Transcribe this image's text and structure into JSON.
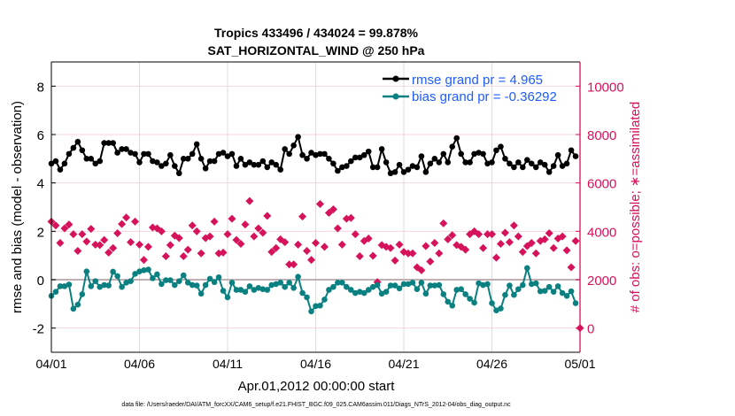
{
  "chart_data": {
    "type": "line",
    "title": [
      "Tropics 433496 / 434024 = 99.878%",
      "SAT_HORIZONTAL_WIND @ 250 hPa"
    ],
    "xlabel": "Apr.01,2012 00:00:00 start",
    "ylabel": "rmse and bias (model - observation)",
    "ylabel_right": "# of obs: o=possible; ∗=assimilated",
    "footer": "data file: /Users/raeder/DAI/ATM_forcXX/CAM6_setup/f.e21.FHIST_BGC.f09_025.CAM6assim.011/Diags_NTrS_2012-04/obs_diag_output.nc",
    "x_start": "2012-04-01 00:00",
    "x_interval_hours": 6,
    "xlim": [
      "2012-04-01",
      "2012-05-01"
    ],
    "xticks": [
      "04/01",
      "04/06",
      "04/11",
      "04/16",
      "04/21",
      "04/26",
      "05/01"
    ],
    "ylim": [
      -3,
      9
    ],
    "yticks": [
      -2,
      0,
      2,
      4,
      6,
      8
    ],
    "ylim_right": [
      -1000,
      11000
    ],
    "yticks_right": [
      0,
      2000,
      4000,
      6000,
      8000,
      10000
    ],
    "grid": true,
    "legend_position": "top-right",
    "colors": {
      "rmse": "#000000",
      "bias": "#0a8080",
      "obs": "#d6125a",
      "legend_text": "#1f5cff",
      "right_axis": "#d6125a"
    },
    "series": [
      {
        "name": "rmse grand pr = 4.965",
        "axis": "left",
        "values": [
          4.8,
          4.9,
          4.55,
          4.8,
          5.2,
          5.45,
          5.7,
          5.35,
          5.0,
          5.0,
          4.8,
          4.9,
          5.65,
          5.65,
          5.65,
          5.25,
          5.4,
          5.4,
          5.25,
          5.2,
          4.85,
          5.2,
          5.2,
          4.9,
          4.85,
          4.7,
          4.8,
          5.15,
          4.7,
          4.4,
          5.0,
          5.0,
          5.2,
          5.6,
          5.0,
          4.6,
          4.9,
          4.9,
          5.2,
          5.25,
          5.1,
          5.2,
          4.7,
          5.0,
          4.75,
          4.85,
          4.75,
          4.75,
          4.9,
          4.65,
          4.85,
          4.75,
          4.55,
          5.4,
          5.2,
          5.55,
          5.9,
          5.15,
          5.0,
          5.25,
          5.15,
          5.2,
          5.2,
          5.0,
          4.8,
          4.5,
          4.65,
          4.7,
          4.9,
          5.05,
          5.05,
          5.15,
          5.3,
          4.65,
          4.65,
          5.4,
          4.85,
          4.4,
          4.45,
          4.75,
          4.45,
          4.55,
          4.7,
          4.65,
          5.1,
          4.45,
          4.8,
          5.0,
          4.85,
          5.2,
          4.85,
          5.5,
          5.85,
          5.2,
          4.85,
          4.85,
          5.2,
          5.25,
          5.2,
          4.8,
          4.85,
          5.35,
          5.5,
          5.0,
          4.8,
          4.65,
          4.85,
          4.65,
          4.95,
          4.8,
          4.65,
          4.85,
          4.75,
          4.45,
          4.7,
          5.15,
          4.7,
          4.8,
          5.35,
          5.1
        ]
      },
      {
        "name": "bias grand pr = -0.36292",
        "axis": "left",
        "values": [
          -0.67,
          -0.5,
          -0.27,
          -0.27,
          -0.2,
          -1.2,
          -1.03,
          -0.6,
          0.34,
          -0.27,
          -0.06,
          -0.3,
          -0.22,
          -0.24,
          0.33,
          0.15,
          -0.3,
          -0.12,
          -0.06,
          0.24,
          0.34,
          0.39,
          0.42,
          0.06,
          0.22,
          -0.18,
          -0.02,
          -0.02,
          -0.22,
          -0.06,
          0.18,
          -0.12,
          -0.22,
          -0.24,
          -0.58,
          -0.22,
          0.04,
          -0.1,
          0.1,
          -0.46,
          -0.73,
          -0.12,
          -0.42,
          -0.42,
          -0.5,
          -0.27,
          -0.42,
          -0.34,
          -0.39,
          -0.42,
          -0.22,
          -0.18,
          -0.12,
          -0.3,
          -0.12,
          -0.34,
          0.12,
          -0.55,
          -0.73,
          -1.31,
          -1.09,
          -1.07,
          -0.82,
          -0.42,
          -0.3,
          -0.12,
          -0.12,
          -0.3,
          -0.42,
          -0.55,
          -0.5,
          -0.55,
          -0.42,
          -0.3,
          -0.22,
          -0.58,
          -0.5,
          -0.24,
          -0.24,
          -0.36,
          -0.18,
          -0.18,
          -0.12,
          -0.39,
          -0.12,
          -0.58,
          -0.24,
          -0.24,
          -0.22,
          -0.6,
          -0.91,
          -1.07,
          -0.42,
          -0.39,
          -0.6,
          -0.79,
          -0.95,
          -0.15,
          -0.22,
          -0.18,
          -0.97,
          -1.27,
          -1.19,
          -0.63,
          -0.24,
          -0.63,
          -0.39,
          -0.22,
          0.48,
          -0.18,
          -0.15,
          -0.48,
          -0.46,
          -0.3,
          -0.5,
          -0.27,
          -0.55,
          -0.67,
          -0.48,
          -0.97
        ]
      },
      {
        "axis": "right",
        "values": [
          4400,
          4240,
          3520,
          4120,
          4280,
          3880,
          3190,
          3880,
          3580,
          4100,
          3450,
          3430,
          3640,
          3120,
          3310,
          3920,
          4300,
          4570,
          3550,
          4400,
          3450,
          2820,
          3360,
          4160,
          4120,
          4000,
          2970,
          3430,
          3820,
          3720,
          2970,
          3240,
          4240,
          4000,
          3090,
          3720,
          3790,
          4400,
          3090,
          3120,
          3880,
          4520,
          3640,
          3480,
          4280,
          5250,
          3790,
          4120,
          3940,
          4640,
          3150,
          3310,
          3670,
          3550,
          2630,
          2630,
          3450,
          4610,
          3190,
          2820,
          3520,
          5130,
          3360,
          4760,
          4910,
          4120,
          3450,
          4520,
          4550,
          3880,
          2970,
          3600,
          3700,
          2990,
          1900,
          3430,
          3360,
          3310,
          2790,
          3450,
          3150,
          3090,
          3090,
          2510,
          2390,
          3390,
          2750,
          3520,
          3090,
          4330,
          3670,
          3840,
          3430,
          3360,
          3240,
          3880,
          4000,
          3880,
          3310,
          3880,
          3880,
          2910,
          3480,
          3940,
          3550,
          4240,
          3790,
          3150,
          3390,
          3520,
          3090,
          3600,
          3670,
          3920,
          3310,
          3700,
          3790,
          3210,
          2510,
          3600,
          0
        ]
      }
    ]
  }
}
